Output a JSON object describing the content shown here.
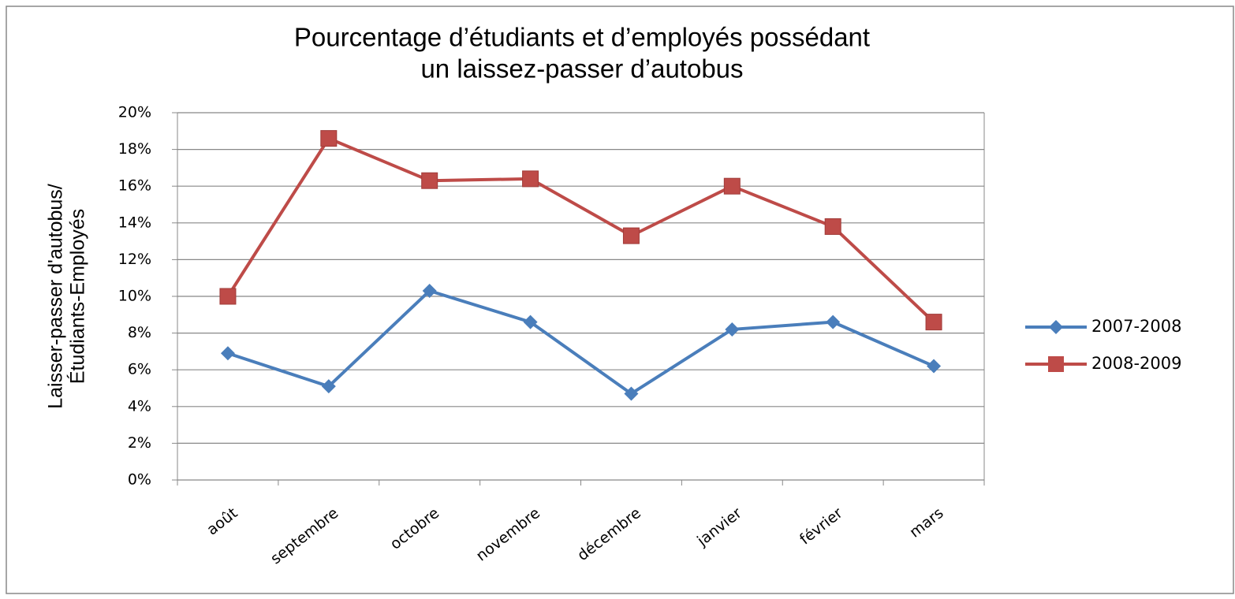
{
  "chart_data": {
    "type": "line",
    "title": [
      "Pourcentage d’étudiants et d’employés possédant",
      "un laissez-passer d’autobus"
    ],
    "y_label": [
      "Laisser-passer d'autobus/",
      "Étudiants-Employés"
    ],
    "categories": [
      "août",
      "septembre",
      "octobre",
      "novembre",
      "décembre",
      "janvier",
      "février",
      "mars"
    ],
    "series": [
      {
        "name": "2007-2008",
        "color": "#4a7ebb",
        "marker": "diamond",
        "values": [
          6.9,
          5.1,
          10.3,
          8.6,
          4.7,
          8.2,
          8.6,
          6.2
        ]
      },
      {
        "name": "2008-2009",
        "color": "#be4b48",
        "marker": "square",
        "values": [
          10.0,
          18.6,
          16.3,
          16.4,
          13.3,
          16.0,
          13.8,
          8.6
        ]
      }
    ],
    "ylim": [
      0,
      20
    ],
    "yticks": [
      {
        "value": 0,
        "label": "0%"
      },
      {
        "value": 2,
        "label": "2%"
      },
      {
        "value": 4,
        "label": "4%"
      },
      {
        "value": 6,
        "label": "6%"
      },
      {
        "value": 8,
        "label": "8%"
      },
      {
        "value": 10,
        "label": "10%"
      },
      {
        "value": 12,
        "label": "12%"
      },
      {
        "value": 14,
        "label": "14%"
      },
      {
        "value": 16,
        "label": "16%"
      },
      {
        "value": 18,
        "label": "18%"
      },
      {
        "value": 20,
        "label": "20%"
      }
    ],
    "grid": true,
    "legend": "right"
  }
}
